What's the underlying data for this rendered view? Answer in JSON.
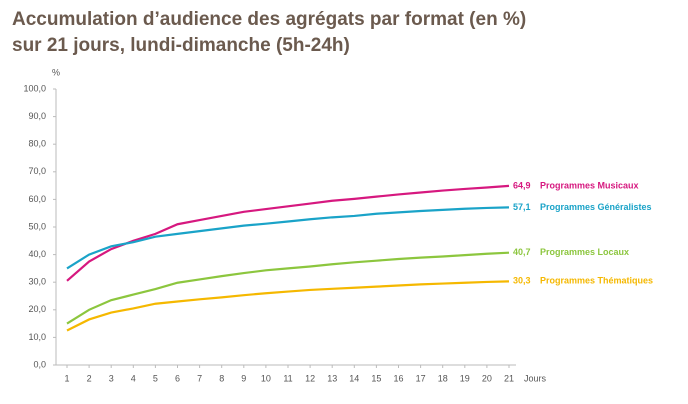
{
  "chart_data": {
    "type": "line",
    "title": "Accumulation d’audience des agrégats par format (en %)",
    "subtitle": "sur 21 jours, lundi-dimanche (5h-24h)",
    "ylabel": "%",
    "xlabel": "Jours",
    "x": [
      1,
      2,
      3,
      4,
      5,
      6,
      7,
      8,
      9,
      10,
      11,
      12,
      13,
      14,
      15,
      16,
      17,
      18,
      19,
      20,
      21
    ],
    "xlim": [
      1,
      21
    ],
    "xticks": [
      1,
      2,
      3,
      4,
      5,
      6,
      7,
      8,
      9,
      10,
      11,
      12,
      13,
      14,
      15,
      16,
      17,
      18,
      19,
      20,
      21
    ],
    "ylim": [
      0,
      100
    ],
    "yticks": [
      {
        "value": 0,
        "label": "0,0"
      },
      {
        "value": 10,
        "label": "10,0"
      },
      {
        "value": 20,
        "label": "20,0"
      },
      {
        "value": 30,
        "label": "30,0"
      },
      {
        "value": 40,
        "label": "40,0"
      },
      {
        "value": 50,
        "label": "50,0"
      },
      {
        "value": 60,
        "label": "60,0"
      },
      {
        "value": 70,
        "label": "70,0"
      },
      {
        "value": 80,
        "label": "80,0"
      },
      {
        "value": 90,
        "label": "90,0"
      },
      {
        "value": 100,
        "label": "100,0"
      }
    ],
    "grid": false,
    "series": [
      {
        "name": "Programmes Musicaux",
        "color": "#d6187f",
        "values": [
          30.5,
          37.5,
          42,
          45,
          47.5,
          51,
          52.5,
          54,
          55.5,
          56.5,
          57.5,
          58.5,
          59.5,
          60.2,
          61,
          61.8,
          62.5,
          63.2,
          63.8,
          64.3,
          64.9
        ],
        "value_labels": [
          null,
          null,
          null,
          null,
          null,
          null,
          null,
          null,
          null,
          null,
          null,
          null,
          null,
          null,
          null,
          null,
          null,
          null,
          null,
          null,
          "64,9"
        ]
      },
      {
        "name": "Programmes Généralistes",
        "color": "#1aa3c8",
        "values": [
          35,
          40,
          43,
          44.5,
          46.5,
          47.5,
          48.5,
          49.5,
          50.5,
          51.2,
          52,
          52.8,
          53.5,
          54,
          54.8,
          55.3,
          55.8,
          56.2,
          56.6,
          56.9,
          57.1
        ],
        "value_labels": [
          null,
          null,
          null,
          null,
          null,
          null,
          null,
          null,
          null,
          null,
          null,
          null,
          null,
          null,
          null,
          null,
          null,
          null,
          null,
          null,
          "57,1"
        ]
      },
      {
        "name": "Programmes Locaux",
        "color": "#8cc63e",
        "values": [
          15,
          20,
          23.5,
          25.5,
          27.5,
          29.8,
          31,
          32.2,
          33.3,
          34.3,
          35,
          35.7,
          36.5,
          37.2,
          37.8,
          38.4,
          38.9,
          39.3,
          39.8,
          40.3,
          40.7
        ],
        "value_labels": [
          null,
          null,
          null,
          null,
          null,
          null,
          null,
          null,
          null,
          null,
          null,
          null,
          null,
          null,
          null,
          null,
          null,
          null,
          null,
          null,
          "40,7"
        ]
      },
      {
        "name": "Programmes Thématiques",
        "color": "#f5b800",
        "values": [
          12.5,
          16.5,
          19,
          20.5,
          22.2,
          23,
          23.8,
          24.5,
          25.3,
          26,
          26.6,
          27.2,
          27.6,
          28,
          28.4,
          28.8,
          29.2,
          29.5,
          29.8,
          30.1,
          30.3
        ],
        "value_labels": [
          null,
          null,
          null,
          null,
          null,
          null,
          null,
          null,
          null,
          null,
          null,
          null,
          null,
          null,
          null,
          null,
          null,
          null,
          null,
          null,
          "30,3"
        ]
      }
    ]
  }
}
